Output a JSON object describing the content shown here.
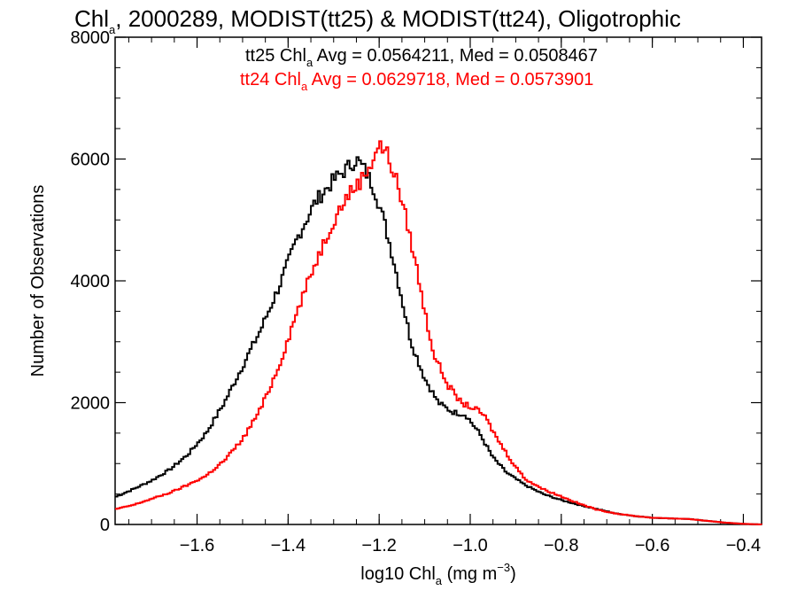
{
  "chart_data": {
    "type": "line",
    "title": {
      "part1": "Chl",
      "sub": "a",
      "part2": ", 2000289, MODIST(tt25) & MODIST(tt24), Oligotrophic"
    },
    "xlabel": {
      "part1": "log10 Chl",
      "sub": "a",
      "part2": " (mg m",
      "sup": "−3",
      "part3": ")"
    },
    "ylabel": "Number of Observations",
    "xlim": [
      -1.78,
      -0.36
    ],
    "ylim": [
      0,
      8000
    ],
    "x_ticks": [
      -1.6,
      -1.4,
      -1.2,
      -1.0,
      -0.8,
      -0.6,
      -0.4
    ],
    "x_tick_labels": [
      "−1.6",
      "−1.4",
      "−1.2",
      "−1.0",
      "−0.8",
      "−0.6",
      "−0.4"
    ],
    "y_ticks": [
      0,
      2000,
      4000,
      6000,
      8000
    ],
    "y_tick_labels": [
      "0",
      "2000",
      "4000",
      "6000",
      "8000"
    ],
    "grid": false,
    "legend_position": "top",
    "legend": [
      {
        "name_part1": "tt25 Chl",
        "name_sub": "a",
        "text": " Avg = 0.0564211, Med = 0.0508467",
        "color": "#000000"
      },
      {
        "name_part1": "tt24 Chl",
        "name_sub": "a",
        "text": " Avg = 0.0629718, Med = 0.0573901",
        "color": "#ff0000"
      }
    ],
    "series": [
      {
        "color": "#000000",
        "points": [
          [
            -1.78,
            450
          ],
          [
            -1.74,
            580
          ],
          [
            -1.7,
            720
          ],
          [
            -1.66,
            900
          ],
          [
            -1.62,
            1150
          ],
          [
            -1.58,
            1500
          ],
          [
            -1.54,
            2000
          ],
          [
            -1.5,
            2600
          ],
          [
            -1.46,
            3200
          ],
          [
            -1.42,
            3900
          ],
          [
            -1.38,
            4700
          ],
          [
            -1.34,
            5300
          ],
          [
            -1.3,
            5650
          ],
          [
            -1.27,
            5850
          ],
          [
            -1.25,
            6000
          ],
          [
            -1.23,
            5800
          ],
          [
            -1.21,
            5500
          ],
          [
            -1.19,
            5000
          ],
          [
            -1.17,
            4400
          ],
          [
            -1.15,
            3700
          ],
          [
            -1.13,
            3000
          ],
          [
            -1.1,
            2400
          ],
          [
            -1.07,
            2000
          ],
          [
            -1.04,
            1850
          ],
          [
            -1.01,
            1800
          ],
          [
            -0.98,
            1500
          ],
          [
            -0.95,
            1100
          ],
          [
            -0.92,
            850
          ],
          [
            -0.88,
            650
          ],
          [
            -0.84,
            500
          ],
          [
            -0.8,
            400
          ],
          [
            -0.76,
            320
          ],
          [
            -0.72,
            250
          ],
          [
            -0.68,
            180
          ],
          [
            -0.64,
            140
          ],
          [
            -0.6,
            110
          ],
          [
            -0.56,
            100
          ],
          [
            -0.52,
            90
          ],
          [
            -0.48,
            60
          ],
          [
            -0.44,
            30
          ],
          [
            -0.4,
            10
          ],
          [
            -0.36,
            0
          ]
        ]
      },
      {
        "color": "#ff0000",
        "points": [
          [
            -1.78,
            250
          ],
          [
            -1.74,
            320
          ],
          [
            -1.7,
            420
          ],
          [
            -1.66,
            520
          ],
          [
            -1.62,
            650
          ],
          [
            -1.58,
            800
          ],
          [
            -1.54,
            1050
          ],
          [
            -1.5,
            1400
          ],
          [
            -1.46,
            1900
          ],
          [
            -1.42,
            2600
          ],
          [
            -1.38,
            3500
          ],
          [
            -1.34,
            4300
          ],
          [
            -1.3,
            5000
          ],
          [
            -1.27,
            5400
          ],
          [
            -1.24,
            5650
          ],
          [
            -1.22,
            5900
          ],
          [
            -1.2,
            6250
          ],
          [
            -1.18,
            6050
          ],
          [
            -1.16,
            5600
          ],
          [
            -1.14,
            5000
          ],
          [
            -1.12,
            4300
          ],
          [
            -1.1,
            3500
          ],
          [
            -1.08,
            2800
          ],
          [
            -1.05,
            2300
          ],
          [
            -1.02,
            2000
          ],
          [
            -0.99,
            1900
          ],
          [
            -0.97,
            1800
          ],
          [
            -0.94,
            1400
          ],
          [
            -0.91,
            1050
          ],
          [
            -0.88,
            750
          ],
          [
            -0.84,
            580
          ],
          [
            -0.8,
            460
          ],
          [
            -0.76,
            340
          ],
          [
            -0.72,
            240
          ],
          [
            -0.68,
            180
          ],
          [
            -0.64,
            140
          ],
          [
            -0.6,
            110
          ],
          [
            -0.56,
            100
          ],
          [
            -0.52,
            90
          ],
          [
            -0.48,
            60
          ],
          [
            -0.44,
            30
          ],
          [
            -0.4,
            10
          ],
          [
            -0.36,
            0
          ]
        ]
      }
    ]
  }
}
